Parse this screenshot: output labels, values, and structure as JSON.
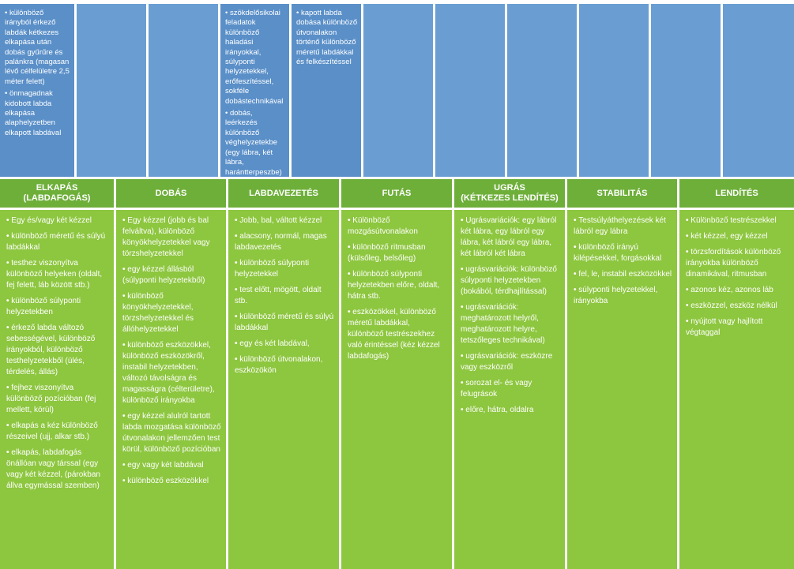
{
  "top_row": [
    {
      "id": "col1",
      "items": [
        "• különböző irányból érkező labdák kétkezes elkapása után dobás gyűrűre és palánkra (magasan lévő célfelületre 2,5 méter felett)",
        "• önmagadnak kidobott labda elkapása alaphelyzetben elkapott labdával"
      ]
    },
    {
      "id": "col2",
      "items": []
    },
    {
      "id": "col3",
      "items": []
    },
    {
      "id": "col3b",
      "items": [
        "• szökdelősi­kolai feladatok különböző haladási irányokkal, súlyponti helyzetekkel, erőfeszítéssel, sokféle dobástechnikával",
        "• dobás, leérkezés különböző véghelyzetekbe (egy lábra, két lábra, harántterpeszbe)"
      ]
    },
    {
      "id": "col4",
      "items": [
        "• kapott labda dobása különböző útvonalakon történő különböző méretű labdákkal és felkészítéssel"
      ]
    },
    {
      "id": "col5",
      "items": []
    },
    {
      "id": "col6",
      "items": []
    },
    {
      "id": "col7",
      "items": []
    },
    {
      "id": "col8",
      "items": []
    },
    {
      "id": "col9",
      "items": []
    }
  ],
  "headers": [
    [
      "ELKAPÁS",
      "(LABDAFOGÁS)"
    ],
    [
      "DOBÁS"
    ],
    [
      "LABDAVEZETÉS"
    ],
    [
      "FUTÁS"
    ],
    [
      "UGRÁS",
      "(KÉTKEZES LENDÍTÉS)"
    ],
    [
      "STABILITÁS"
    ],
    [
      "LENDÍTÉS"
    ]
  ],
  "columns": [
    [
      "Egy és/vagy két kézzel",
      "különböző méretű és súlyú labdákkal",
      "testhez viszonyítva különböző helyeken (oldalt, fej felett, láb között stb.)",
      "különböző súlyponti helyzetekben",
      "érkező labda változó sebességével, különböző irányokból, különböző testhelyzetekből (ülés, térdelés, állás)",
      "fejhez viszonyítva különböző pozícióban (fej mellett, körül)",
      "elkapás a kéz különböző részeivel (ujj, alkar stb.)",
      "elkapás, labdafogás önállóan vagy társsal (egy vagy két kézzel, (párokban állva egymással szemben)"
    ],
    [
      "Egy kézzel (jobb és bal felváltva), különböző könyökhelyzetekkel vagy törzshelyzetekkel",
      "egy kézzel állásból (súlyponti helyzetekből)",
      "különböző könyökhelyzetekkel, törzshelyzetekkel és állóhelyzetekkel",
      "különböző eszközökkel, különböző eszközökről, instabil helyzetekben, változó távolságra és magasságra (célterületre), különböző irányokba",
      "egy kézzel alulról tartott labda mozgatása különböző útvonalakon jellemzően test körül, különböző pozícióban",
      "egy vagy két labdával",
      "különböző eszközökkel"
    ],
    [
      "Jobb, bal, váltott kézzel",
      "alacsony, normál, magas labdavezetés",
      "különböző súlyponti helyzetekkel",
      "test előtt, mögött, oldalt stb.",
      "különböző méretű és súlyú labdákkal",
      "egy és két labdával,",
      "különböző útvonalakon, eszközökön"
    ],
    [
      "Különböző mozgásútvonalakon",
      "különböző ritmusban (külsőleg, belsőleg)",
      "különböző súlyponti helyzetekben előre, oldalt, hátra stb.",
      "eszközökkel, különböző méretű labdákkal, különböző testrészekhez való érintéssel (kéz kézzel labdafogás)"
    ],
    [
      "Ugrásvariációk: egy lábról két lábra, egy lábról egy lábra, két lábról egy lábra, két lábról két lábra",
      "ugrásvariációk: különböző súlyponti helyzetekben (bokából, térdhajlítással)",
      "ugrásvariációk: meghatározott helyről, meghatározott helyre, tetszőleges technikával)",
      "ugrásvariációk: eszközre vagy eszközről",
      "sorozat el- és vagy felugrások",
      "előre, hátra, oldalra"
    ],
    [
      "Testsúlyáthelyezések két lábról egy lábra",
      "különböző irányú kilépésekkel, forgásokkal",
      "fel, le, instabil eszközökkel",
      "súlyponti helyzetekkel, irányokba"
    ],
    [
      "Különböző testrészekkel",
      "két kézzel, egy kézzel",
      "törzsfordítások különböző irányokba különböző dinamikával, ritmusban",
      "azonos kéz, azonos láb",
      "eszközzel, eszköz nélkül",
      "nyújtott vagy hajlított végtaggal"
    ]
  ],
  "colors": {
    "blue": "#6a9ed3",
    "green_head": "#6eaf3a",
    "green_body": "#8dc63f"
  }
}
